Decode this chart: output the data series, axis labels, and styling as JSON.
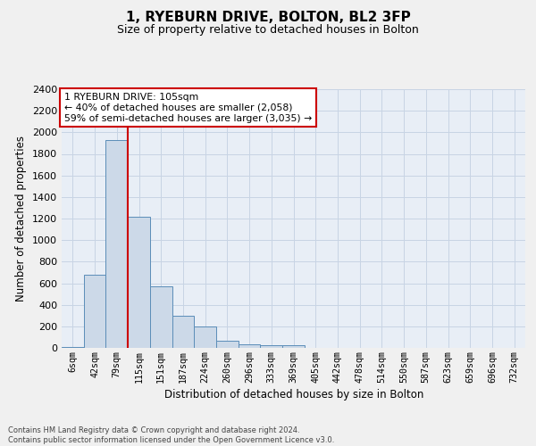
{
  "title": "1, RYEBURN DRIVE, BOLTON, BL2 3FP",
  "subtitle": "Size of property relative to detached houses in Bolton",
  "xlabel": "Distribution of detached houses by size in Bolton",
  "ylabel": "Number of detached properties",
  "bar_labels": [
    "6sqm",
    "42sqm",
    "79sqm",
    "115sqm",
    "151sqm",
    "187sqm",
    "224sqm",
    "260sqm",
    "296sqm",
    "333sqm",
    "369sqm",
    "405sqm",
    "442sqm",
    "478sqm",
    "514sqm",
    "550sqm",
    "587sqm",
    "623sqm",
    "659sqm",
    "696sqm",
    "732sqm"
  ],
  "bar_values": [
    5,
    680,
    1930,
    1220,
    570,
    300,
    195,
    70,
    35,
    25,
    25,
    0,
    0,
    0,
    0,
    0,
    0,
    0,
    0,
    0,
    0
  ],
  "bar_color": "#ccd9e8",
  "bar_edge_color": "#5b8db8",
  "grid_color": "#c8d4e4",
  "background_color": "#e8eef6",
  "fig_background": "#f0f0f0",
  "ylim": [
    0,
    2400
  ],
  "yticks": [
    0,
    200,
    400,
    600,
    800,
    1000,
    1200,
    1400,
    1600,
    1800,
    2000,
    2200,
    2400
  ],
  "property_bar_index": 2,
  "property_line_color": "#cc0000",
  "annotation_text": "1 RYEBURN DRIVE: 105sqm\n← 40% of detached houses are smaller (2,058)\n59% of semi-detached houses are larger (3,035) →",
  "annotation_box_facecolor": "#ffffff",
  "annotation_box_edgecolor": "#cc0000",
  "footer_line1": "Contains HM Land Registry data © Crown copyright and database right 2024.",
  "footer_line2": "Contains public sector information licensed under the Open Government Licence v3.0."
}
